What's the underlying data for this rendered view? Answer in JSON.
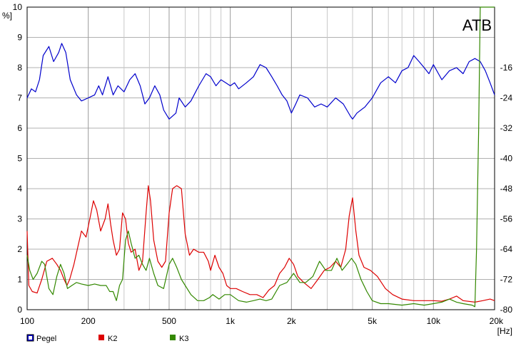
{
  "chart_data": {
    "type": "line",
    "tag": "ATB",
    "y_left": {
      "unit": "%]",
      "range": [
        0,
        10
      ],
      "ticks": [
        "0",
        "1",
        "2",
        "3",
        "4",
        "5",
        "6",
        "7",
        "8",
        "9",
        "10"
      ]
    },
    "y_right": {
      "range": [
        -80,
        0
      ],
      "ticks": [
        "-80",
        "-72",
        "-64",
        "-56",
        "-48",
        "-40",
        "-32",
        "-24",
        "-16"
      ]
    },
    "x": {
      "unit": "[Hz]",
      "scale": "log",
      "range": [
        100,
        20000
      ],
      "ticks": [
        {
          "value": 100,
          "label": "100"
        },
        {
          "value": 200,
          "label": "200"
        },
        {
          "value": 500,
          "label": "500"
        },
        {
          "value": 1000,
          "label": "1k"
        },
        {
          "value": 2000,
          "label": "2k"
        },
        {
          "value": 5000,
          "label": "5k"
        },
        {
          "value": 10000,
          "label": "10k"
        },
        {
          "value": 20000,
          "label": "20k"
        }
      ]
    },
    "grid": true,
    "legend_position": "bottom-left",
    "series": [
      {
        "name": "Pegel",
        "color": "#0000cc",
        "axis": "right",
        "values": [
          [
            100,
            -24.0
          ],
          [
            105,
            -21.6
          ],
          [
            110,
            -22.4
          ],
          [
            115,
            -19.2
          ],
          [
            120,
            -12.8
          ],
          [
            128,
            -10.4
          ],
          [
            135,
            -14.4
          ],
          [
            143,
            -12.0
          ],
          [
            148,
            -9.6
          ],
          [
            155,
            -12.0
          ],
          [
            163,
            -19.2
          ],
          [
            175,
            -23.2
          ],
          [
            185,
            -24.8
          ],
          [
            200,
            -24.0
          ],
          [
            215,
            -23.2
          ],
          [
            225,
            -20.8
          ],
          [
            235,
            -23.2
          ],
          [
            250,
            -18.4
          ],
          [
            265,
            -23.2
          ],
          [
            280,
            -20.8
          ],
          [
            300,
            -22.4
          ],
          [
            320,
            -19.2
          ],
          [
            340,
            -17.6
          ],
          [
            360,
            -20.8
          ],
          [
            380,
            -25.6
          ],
          [
            400,
            -24.0
          ],
          [
            425,
            -20.8
          ],
          [
            450,
            -23.2
          ],
          [
            470,
            -27.2
          ],
          [
            500,
            -29.6
          ],
          [
            540,
            -28.0
          ],
          [
            560,
            -24.0
          ],
          [
            600,
            -26.4
          ],
          [
            640,
            -24.8
          ],
          [
            700,
            -20.8
          ],
          [
            760,
            -17.6
          ],
          [
            800,
            -18.4
          ],
          [
            850,
            -20.8
          ],
          [
            900,
            -19.2
          ],
          [
            950,
            -20.0
          ],
          [
            1000,
            -20.8
          ],
          [
            1050,
            -20.0
          ],
          [
            1100,
            -21.6
          ],
          [
            1200,
            -20.0
          ],
          [
            1300,
            -18.4
          ],
          [
            1400,
            -15.2
          ],
          [
            1500,
            -16.0
          ],
          [
            1600,
            -18.4
          ],
          [
            1700,
            -20.8
          ],
          [
            1800,
            -23.2
          ],
          [
            1900,
            -24.8
          ],
          [
            2000,
            -28.0
          ],
          [
            2100,
            -25.6
          ],
          [
            2200,
            -23.2
          ],
          [
            2400,
            -24.0
          ],
          [
            2600,
            -26.4
          ],
          [
            2800,
            -25.6
          ],
          [
            3000,
            -26.4
          ],
          [
            3300,
            -24.0
          ],
          [
            3600,
            -25.6
          ],
          [
            3900,
            -28.8
          ],
          [
            4000,
            -29.6
          ],
          [
            4200,
            -28.0
          ],
          [
            4600,
            -26.4
          ],
          [
            5000,
            -24.0
          ],
          [
            5500,
            -20.0
          ],
          [
            6000,
            -18.4
          ],
          [
            6500,
            -20.0
          ],
          [
            7000,
            -16.8
          ],
          [
            7500,
            -16.0
          ],
          [
            8000,
            -12.8
          ],
          [
            8500,
            -14.4
          ],
          [
            9000,
            -16.0
          ],
          [
            9500,
            -17.6
          ],
          [
            10000,
            -15.2
          ],
          [
            11000,
            -19.2
          ],
          [
            12000,
            -16.8
          ],
          [
            13000,
            -16.0
          ],
          [
            14000,
            -17.6
          ],
          [
            15000,
            -14.4
          ],
          [
            16000,
            -13.6
          ],
          [
            17000,
            -14.4
          ],
          [
            18000,
            -16.8
          ],
          [
            19000,
            -20.0
          ],
          [
            20000,
            -23.2
          ]
        ]
      },
      {
        "name": "K2",
        "color": "#dd0000",
        "axis": "left",
        "values": [
          [
            100,
            2.6
          ],
          [
            102,
            0.8
          ],
          [
            106,
            0.6
          ],
          [
            112,
            0.55
          ],
          [
            118,
            1.0
          ],
          [
            125,
            1.6
          ],
          [
            133,
            1.7
          ],
          [
            140,
            1.5
          ],
          [
            146,
            1.3
          ],
          [
            152,
            1.0
          ],
          [
            157,
            0.8
          ],
          [
            162,
            1.0
          ],
          [
            170,
            1.5
          ],
          [
            178,
            2.1
          ],
          [
            185,
            2.6
          ],
          [
            195,
            2.4
          ],
          [
            205,
            3.1
          ],
          [
            212,
            3.6
          ],
          [
            220,
            3.3
          ],
          [
            230,
            2.6
          ],
          [
            242,
            3.0
          ],
          [
            250,
            3.5
          ],
          [
            258,
            2.8
          ],
          [
            265,
            2.3
          ],
          [
            275,
            1.8
          ],
          [
            285,
            2.0
          ],
          [
            295,
            3.2
          ],
          [
            305,
            3.0
          ],
          [
            315,
            2.2
          ],
          [
            325,
            1.9
          ],
          [
            340,
            2.0
          ],
          [
            355,
            1.3
          ],
          [
            370,
            1.6
          ],
          [
            385,
            3.2
          ],
          [
            395,
            4.1
          ],
          [
            405,
            3.6
          ],
          [
            420,
            2.3
          ],
          [
            440,
            1.6
          ],
          [
            460,
            1.4
          ],
          [
            480,
            1.6
          ],
          [
            500,
            3.2
          ],
          [
            520,
            4.0
          ],
          [
            545,
            4.1
          ],
          [
            575,
            4.0
          ],
          [
            600,
            2.5
          ],
          [
            630,
            1.8
          ],
          [
            660,
            2.0
          ],
          [
            700,
            1.9
          ],
          [
            740,
            1.9
          ],
          [
            780,
            1.6
          ],
          [
            800,
            1.3
          ],
          [
            840,
            1.8
          ],
          [
            880,
            1.4
          ],
          [
            920,
            1.2
          ],
          [
            960,
            0.8
          ],
          [
            1000,
            0.7
          ],
          [
            1070,
            0.7
          ],
          [
            1150,
            0.6
          ],
          [
            1250,
            0.5
          ],
          [
            1350,
            0.5
          ],
          [
            1450,
            0.4
          ],
          [
            1550,
            0.65
          ],
          [
            1650,
            0.8
          ],
          [
            1750,
            1.2
          ],
          [
            1850,
            1.4
          ],
          [
            1950,
            1.7
          ],
          [
            2050,
            1.5
          ],
          [
            2150,
            1.1
          ],
          [
            2300,
            0.9
          ],
          [
            2500,
            0.7
          ],
          [
            2700,
            1.0
          ],
          [
            2900,
            1.3
          ],
          [
            3100,
            1.4
          ],
          [
            3300,
            1.6
          ],
          [
            3500,
            1.4
          ],
          [
            3700,
            2.0
          ],
          [
            3850,
            3.1
          ],
          [
            4000,
            3.7
          ],
          [
            4150,
            2.6
          ],
          [
            4300,
            1.8
          ],
          [
            4550,
            1.4
          ],
          [
            4900,
            1.3
          ],
          [
            5300,
            1.1
          ],
          [
            5800,
            0.7
          ],
          [
            6300,
            0.5
          ],
          [
            7000,
            0.35
          ],
          [
            8000,
            0.3
          ],
          [
            9000,
            0.3
          ],
          [
            10000,
            0.3
          ],
          [
            11000,
            0.28
          ],
          [
            12000,
            0.35
          ],
          [
            13000,
            0.45
          ],
          [
            14000,
            0.3
          ],
          [
            16000,
            0.25
          ],
          [
            17500,
            0.3
          ],
          [
            19000,
            0.35
          ],
          [
            20000,
            0.3
          ]
        ]
      },
      {
        "name": "K3",
        "color": "#338800",
        "axis": "left",
        "values": [
          [
            100,
            1.8
          ],
          [
            103,
            1.3
          ],
          [
            107,
            1.0
          ],
          [
            112,
            1.2
          ],
          [
            118,
            1.6
          ],
          [
            122,
            1.5
          ],
          [
            128,
            0.7
          ],
          [
            134,
            0.5
          ],
          [
            140,
            1.1
          ],
          [
            146,
            1.5
          ],
          [
            152,
            1.2
          ],
          [
            158,
            0.7
          ],
          [
            166,
            0.8
          ],
          [
            175,
            0.9
          ],
          [
            185,
            0.85
          ],
          [
            200,
            0.8
          ],
          [
            215,
            0.85
          ],
          [
            230,
            0.8
          ],
          [
            245,
            0.8
          ],
          [
            255,
            0.6
          ],
          [
            265,
            0.6
          ],
          [
            275,
            0.3
          ],
          [
            285,
            0.8
          ],
          [
            295,
            1.0
          ],
          [
            305,
            2.3
          ],
          [
            315,
            2.6
          ],
          [
            325,
            2.2
          ],
          [
            340,
            1.7
          ],
          [
            355,
            1.8
          ],
          [
            370,
            1.5
          ],
          [
            385,
            1.3
          ],
          [
            400,
            1.7
          ],
          [
            420,
            1.2
          ],
          [
            440,
            0.8
          ],
          [
            470,
            0.7
          ],
          [
            500,
            1.5
          ],
          [
            520,
            1.7
          ],
          [
            545,
            1.4
          ],
          [
            575,
            1.0
          ],
          [
            600,
            0.8
          ],
          [
            640,
            0.5
          ],
          [
            690,
            0.3
          ],
          [
            740,
            0.3
          ],
          [
            790,
            0.4
          ],
          [
            820,
            0.5
          ],
          [
            880,
            0.35
          ],
          [
            940,
            0.5
          ],
          [
            1000,
            0.5
          ],
          [
            1100,
            0.3
          ],
          [
            1200,
            0.25
          ],
          [
            1300,
            0.3
          ],
          [
            1400,
            0.35
          ],
          [
            1500,
            0.3
          ],
          [
            1600,
            0.35
          ],
          [
            1750,
            0.8
          ],
          [
            1900,
            0.9
          ],
          [
            2050,
            1.2
          ],
          [
            2200,
            0.9
          ],
          [
            2350,
            0.9
          ],
          [
            2550,
            1.1
          ],
          [
            2750,
            1.6
          ],
          [
            2950,
            1.3
          ],
          [
            3150,
            1.3
          ],
          [
            3350,
            1.7
          ],
          [
            3550,
            1.3
          ],
          [
            3750,
            1.5
          ],
          [
            3950,
            1.7
          ],
          [
            4150,
            1.5
          ],
          [
            4400,
            1.0
          ],
          [
            4700,
            0.6
          ],
          [
            5000,
            0.3
          ],
          [
            5500,
            0.2
          ],
          [
            6000,
            0.2
          ],
          [
            7000,
            0.15
          ],
          [
            8000,
            0.2
          ],
          [
            9000,
            0.15
          ],
          [
            10000,
            0.2
          ],
          [
            11000,
            0.25
          ],
          [
            12000,
            0.35
          ],
          [
            13000,
            0.25
          ],
          [
            14000,
            0.2
          ],
          [
            15500,
            0.15
          ],
          [
            16000,
            0.1
          ],
          [
            16300,
            2.0
          ],
          [
            16700,
            6.0
          ],
          [
            17000,
            10.0
          ],
          [
            20000,
            10.0
          ]
        ]
      }
    ]
  }
}
